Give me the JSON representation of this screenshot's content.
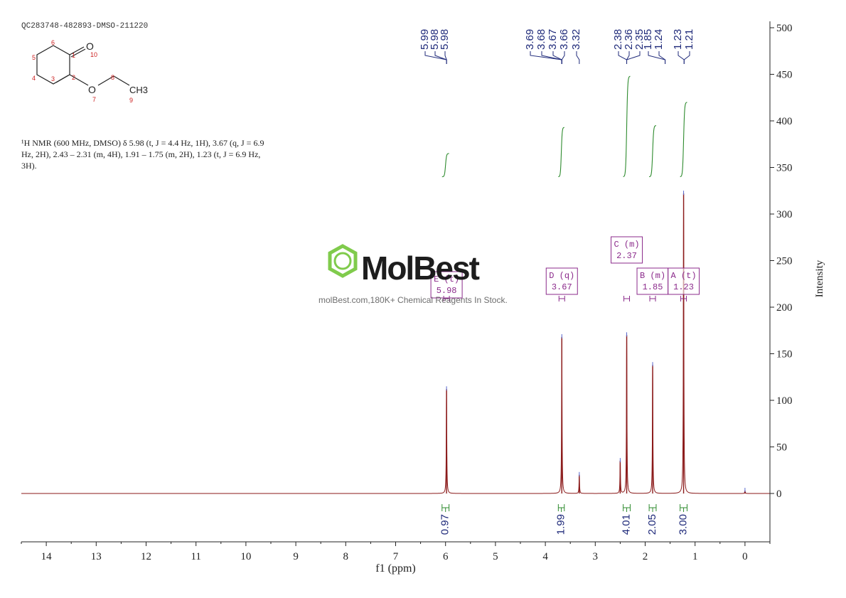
{
  "sample_id": "QC283748-482893-DMSO-211220",
  "nmr_description": "¹H NMR (600 MHz, DMSO) δ 5.98 (t, J = 4.4 Hz, 1H), 3.67 (q, J = 6.9 Hz, 2H), 2.43 – 2.31 (m, 4H), 1.91 – 1.75 (m, 2H), 1.23 (t, J = 6.9 Hz, 3H).",
  "watermark": {
    "brand": "MolBest",
    "tagline": "molBest.com,180K+ Chemical Reagents In Stock."
  },
  "molecule": {
    "atoms": [
      {
        "label": "O",
        "num": "10"
      },
      {
        "label": "O",
        "num": "7"
      },
      {
        "label": "CH3",
        "num": "9"
      }
    ],
    "numbers": [
      "1",
      "2",
      "3",
      "4",
      "5",
      "6",
      "8"
    ]
  },
  "colors": {
    "spectrum": "#8b1a1a",
    "integral": "#2e8b2e",
    "peak_label": "#1f2a7a",
    "multiplet_box": "#8b2a8b",
    "axis": "#222222",
    "atom_number": "#cc2222",
    "watermark_green": "#7ac943"
  },
  "chart_data": {
    "type": "line",
    "xlabel": "f1 (ppm)",
    "ylabel": "Intensity",
    "xlim": [
      14.5,
      -0.5
    ],
    "ylim": [
      -50,
      500
    ],
    "x_ticks": [
      14,
      13,
      12,
      11,
      10,
      9,
      8,
      7,
      6,
      5,
      4,
      3,
      2,
      1,
      0
    ],
    "y_ticks": [
      0,
      50,
      100,
      150,
      200,
      250,
      300,
      350,
      400,
      450,
      500
    ],
    "peaks": [
      {
        "ppm": 5.98,
        "height": 112
      },
      {
        "ppm": 3.67,
        "height": 168
      },
      {
        "ppm": 3.32,
        "height": 20
      },
      {
        "ppm": 2.5,
        "height": 35
      },
      {
        "ppm": 2.37,
        "height": 170
      },
      {
        "ppm": 1.85,
        "height": 138
      },
      {
        "ppm": 1.23,
        "height": 322
      },
      {
        "ppm": 0.0,
        "height": 3
      }
    ],
    "peak_labels": [
      {
        "group": [
          "5.99",
          "5.98",
          "5.98"
        ],
        "anchor_ppm": 5.98
      },
      {
        "group": [
          "3.69",
          "3.68",
          "3.67",
          "3.66"
        ],
        "anchor_ppm": 3.67
      },
      {
        "group": [
          "3.32"
        ],
        "anchor_ppm": 3.32
      },
      {
        "group": [
          "2.38",
          "2.36",
          "2.35"
        ],
        "anchor_ppm": 2.37
      },
      {
        "group": [
          "1.85",
          "1.24"
        ],
        "anchor_ppm": 1.6
      },
      {
        "group": [
          "1.23",
          "1.21"
        ],
        "anchor_ppm": 1.22
      }
    ],
    "multiplets": [
      {
        "letter": "E",
        "mult": "(t)",
        "shift": "5.98",
        "ppm": 5.98
      },
      {
        "letter": "D",
        "mult": "(q)",
        "shift": "3.67",
        "ppm": 3.67
      },
      {
        "letter": "C",
        "mult": "(m)",
        "shift": "2.37",
        "ppm": 2.37
      },
      {
        "letter": "B",
        "mult": "(m)",
        "shift": "1.85",
        "ppm": 1.85
      },
      {
        "letter": "A",
        "mult": "(t)",
        "shift": "1.23",
        "ppm": 1.23
      }
    ],
    "integrals": [
      {
        "from": 6.07,
        "to": 5.93,
        "value": "0.97",
        "start": 340,
        "end": 365
      },
      {
        "from": 3.74,
        "to": 3.62,
        "value": "1.99",
        "start": 340,
        "end": 393
      },
      {
        "from": 2.44,
        "to": 2.3,
        "value": "4.01",
        "start": 340,
        "end": 448
      },
      {
        "from": 1.92,
        "to": 1.78,
        "value": "2.05",
        "start": 340,
        "end": 395
      },
      {
        "from": 1.3,
        "to": 1.16,
        "value": "3.00",
        "start": 340,
        "end": 420
      }
    ]
  }
}
